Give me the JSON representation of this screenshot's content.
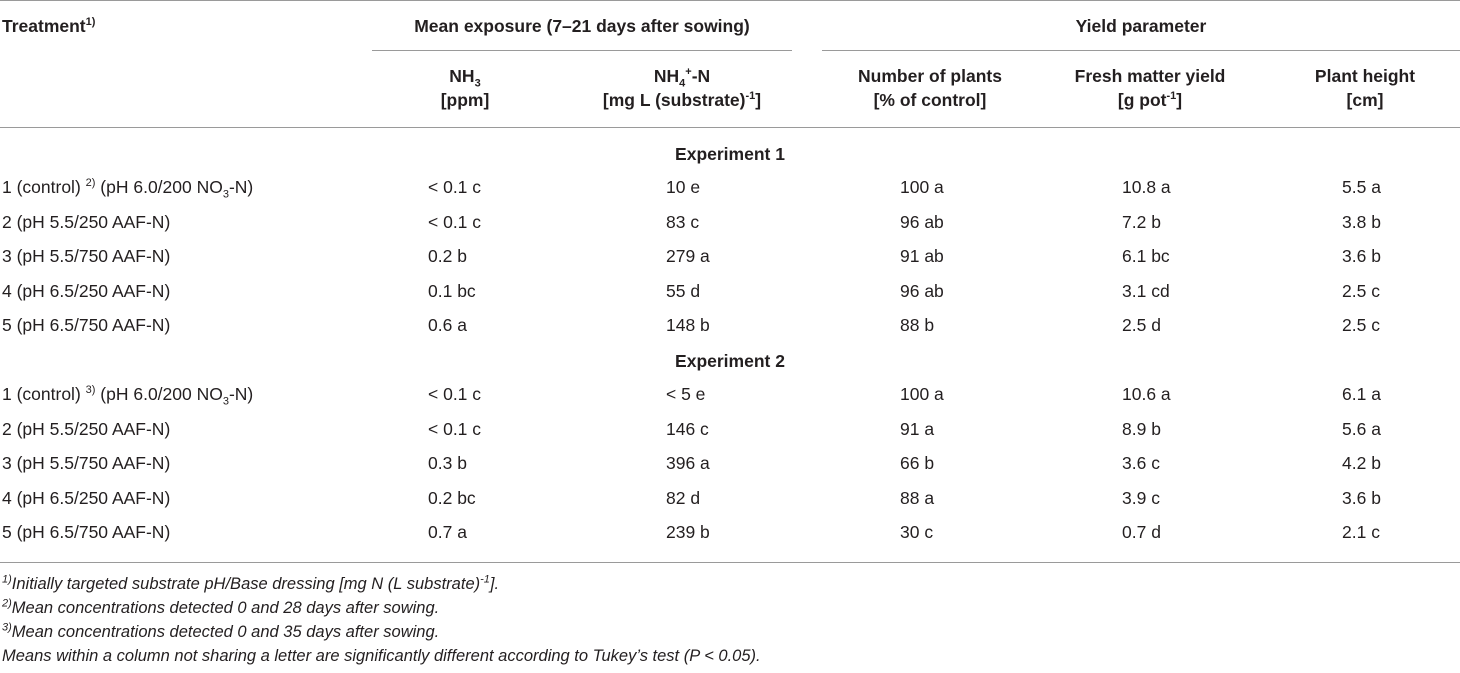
{
  "header": {
    "treatment": "Treatment",
    "treatment_sup": "1)",
    "group_exposure": "Mean exposure (7–21 days after sowing)",
    "group_yield": "Yield parameter",
    "nh3": "NH",
    "nh3_sub": "3",
    "nh3_unit": "[ppm]",
    "nh4": "NH",
    "nh4_sub": "4",
    "nh4_sup": "+",
    "nh4_rest": "-N",
    "nh4_unit": "[mg L (substrate)",
    "nh4_unit_sup": "-1",
    "nh4_unit_end": "]",
    "plants": "Number of plants",
    "plants_unit": "[% of control]",
    "fresh": "Fresh matter yield",
    "fresh_unit_a": "[g pot",
    "fresh_unit_sup": "-1",
    "fresh_unit_b": "]",
    "height": "Plant height",
    "height_unit": "[cm]"
  },
  "experiments": [
    {
      "title": "Experiment 1",
      "rows": [
        {
          "t1": "1 (control) ",
          "tsup": "2)",
          "t2": " (pH 6.0/200 NO",
          "tsub": "3",
          "t3": "-N)",
          "nh3": "< 0.1 c",
          "nh4": "10 e",
          "plants": "100 a",
          "fresh": "10.8 a",
          "height": "5.5 a"
        },
        {
          "t1": "2 (pH 5.5/250 AAF-N)",
          "nh3": "< 0.1 c",
          "nh4": "83 c",
          "plants": "96 ab",
          "fresh": "7.2 b",
          "height": "3.8 b"
        },
        {
          "t1": "3 (pH 5.5/750 AAF-N)",
          "nh3": "0.2 b",
          "nh4": "279 a",
          "plants": "91 ab",
          "fresh": "6.1 bc",
          "height": "3.6 b"
        },
        {
          "t1": "4 (pH 6.5/250 AAF-N)",
          "nh3": "0.1 bc",
          "nh4": "55 d",
          "plants": "96 ab",
          "fresh": "3.1 cd",
          "height": "2.5 c"
        },
        {
          "t1": "5 (pH 6.5/750 AAF-N)",
          "nh3": "0.6 a",
          "nh4": "148 b",
          "plants": "88 b",
          "fresh": "2.5 d",
          "height": "2.5 c"
        }
      ]
    },
    {
      "title": "Experiment 2",
      "rows": [
        {
          "t1": "1 (control) ",
          "tsup": "3)",
          "t2": " (pH 6.0/200 NO",
          "tsub": "3",
          "t3": "-N)",
          "nh3": "< 0.1 c",
          "nh4": "< 5 e",
          "plants": "100 a",
          "fresh": "10.6 a",
          "height": "6.1 a"
        },
        {
          "t1": "2 (pH 5.5/250 AAF-N)",
          "nh3": "< 0.1 c",
          "nh4": "146 c",
          "plants": "91 a",
          "fresh": "8.9 b",
          "height": "5.6 a"
        },
        {
          "t1": "3 (pH 5.5/750 AAF-N)",
          "nh3": "0.3 b",
          "nh4": "396 a",
          "plants": "66 b",
          "fresh": "3.6 c",
          "height": "4.2 b"
        },
        {
          "t1": "4 (pH 6.5/250 AAF-N)",
          "nh3": "0.2 bc",
          "nh4": "82 d",
          "plants": "88 a",
          "fresh": "3.9 c",
          "height": "3.6 b"
        },
        {
          "t1": "5 (pH 6.5/750 AAF-N)",
          "nh3": "0.7 a",
          "nh4": "239 b",
          "plants": "30 c",
          "fresh": "0.7 d",
          "height": "2.1 c"
        }
      ]
    }
  ],
  "footnotes": {
    "f1_sup": "1)",
    "f1_text": "Initially targeted substrate pH/Base dressing [mg N (L substrate)",
    "f1_sup2": "-1",
    "f1_end": "].",
    "f2_sup": "2)",
    "f2_text": "Mean concentrations detected 0 and 28 days after sowing.",
    "f3_sup": "3)",
    "f3_text": "Mean concentrations detected 0 and 35 days after sowing.",
    "f4_text": "Means within a column not sharing a letter are significantly different according to Tukey’s test (P < 0.05)."
  }
}
